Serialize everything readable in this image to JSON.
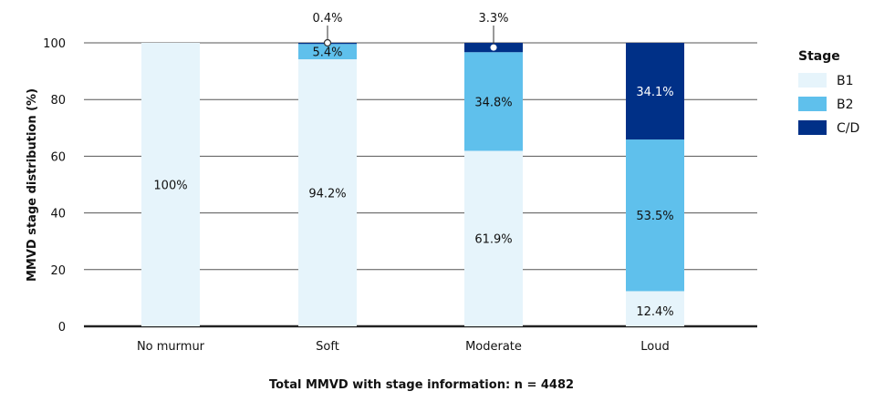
{
  "chart_data": {
    "type": "bar",
    "stacked": true,
    "categories": [
      "No murmur",
      "Soft",
      "Moderate",
      "Loud"
    ],
    "series": [
      {
        "name": "B1",
        "color": "#e6f4fb",
        "values": [
          100,
          94.2,
          61.9,
          12.4
        ],
        "labels": [
          "100%",
          "94.2%",
          "61.9%",
          "12.4%"
        ]
      },
      {
        "name": "B2",
        "color": "#5fc0ec",
        "values": [
          0,
          5.4,
          34.8,
          53.5
        ],
        "labels": [
          "",
          "5.4%",
          "34.8%",
          "53.5%"
        ]
      },
      {
        "name": "C/D",
        "color": "#003087",
        "values": [
          0,
          0.4,
          3.3,
          34.1
        ],
        "labels": [
          "",
          "0.4%",
          "3.3%",
          "34.1%"
        ]
      }
    ],
    "ylabel": "MMVD stage distribution (%)",
    "xlabel": "Total MMVD with stage information: n = 4482",
    "ylim": [
      0,
      100
    ],
    "yticks": [
      "0",
      "20",
      "40",
      "60",
      "80",
      "100"
    ],
    "grid": true,
    "legend": {
      "title": "Stage",
      "placement": "right"
    }
  }
}
